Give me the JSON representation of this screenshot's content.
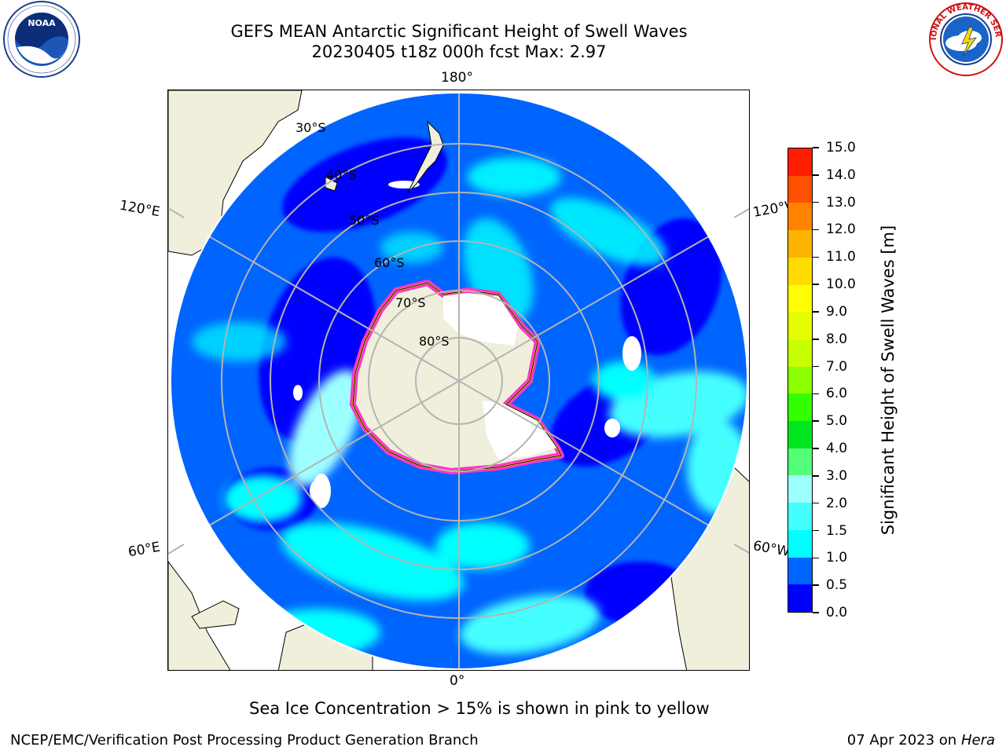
{
  "header": {
    "title_line1": "GEFS MEAN Antarctic Significant Height of Swell Waves",
    "title_line2": "20230405 t18z 000h fcst   Max: 2.97"
  },
  "map": {
    "projection": "south-polar-stereographic",
    "longitude_labels": {
      "top": "180°",
      "bottom": "0°",
      "left_upper": "120°E",
      "left_lower": "60°E",
      "right_upper": "120°W",
      "right_lower": "60°W"
    },
    "latitude_labels": [
      "30°S",
      "40°S",
      "50°S",
      "60°S",
      "70°S",
      "80°S"
    ],
    "land_color": "#efefdc",
    "ocean_dominant_color": "#0064ff"
  },
  "colorbar": {
    "label": "Significant Height of Swell Waves [m]",
    "ticks": [
      "0.0",
      "0.5",
      "1.0",
      "1.5",
      "2.0",
      "3.0",
      "4.0",
      "5.0",
      "6.0",
      "7.0",
      "8.0",
      "9.0",
      "10.0",
      "11.0",
      "12.0",
      "13.0",
      "14.0",
      "15.0"
    ],
    "colors": [
      "#0000ff",
      "#0064ff",
      "#00ffff",
      "#45ffff",
      "#9effff",
      "#53ff78",
      "#00e61e",
      "#32ff00",
      "#8cff00",
      "#c8ff00",
      "#e6ff00",
      "#ffff00",
      "#ffdc00",
      "#ffb400",
      "#ff8200",
      "#ff5000",
      "#ff1e00"
    ]
  },
  "logos": {
    "left": "NOAA",
    "right": "NATIONAL WEATHER SERVICE"
  },
  "ice_note": "Sea Ice Concentration > 15% is shown in pink to yellow",
  "footer": {
    "left": "NCEP/EMC/Verification Post Processing Product Generation Branch",
    "right_prefix": "07 Apr 2023 on ",
    "right_machine": "Hera"
  }
}
